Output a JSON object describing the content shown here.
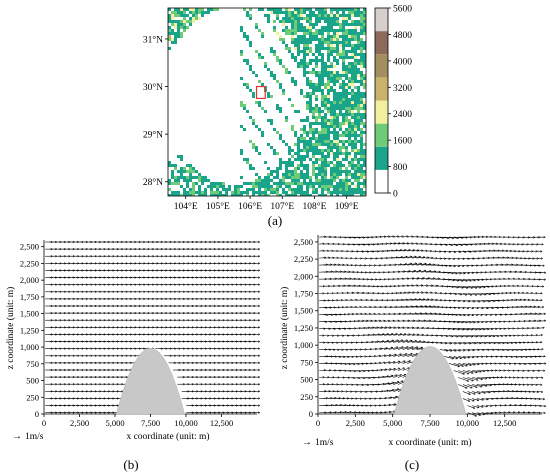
{
  "figure": {
    "panels": [
      {
        "id": "a",
        "label": "(a)",
        "chart_data": {
          "type": "heatmap",
          "title": "",
          "xlabel": "",
          "ylabel": "",
          "x_ticks": [
            "104°E",
            "105°E",
            "106°E",
            "107°E",
            "108°E",
            "109°E"
          ],
          "x_tick_values": [
            104,
            105,
            106,
            107,
            108,
            109
          ],
          "y_ticks": [
            "28°N",
            "29°N",
            "30°N",
            "31°N"
          ],
          "y_tick_values": [
            28,
            29,
            30,
            31
          ],
          "xlim": [
            103.45,
            109.6
          ],
          "ylim": [
            27.7,
            31.65
          ],
          "colorbar": {
            "ticks": [
              "0",
              "800",
              "1600",
              "2400",
              "3200",
              "4000",
              "4800",
              "5600"
            ],
            "values": [
              0,
              800,
              1600,
              2400,
              3200,
              4000,
              4800,
              5600
            ],
            "colors": [
              "#ffffff",
              "#1aa48a",
              "#6fcb78",
              "#f2f09e",
              "#c9b26a",
              "#a28e5e",
              "#8c6a5a",
              "#d7cfcc"
            ]
          },
          "highlight_box": {
            "lon": [
              106.2,
              106.47
            ],
            "lat": [
              29.75,
              30.0
            ],
            "color": "#e8322d"
          }
        }
      },
      {
        "id": "b",
        "label": "(b)",
        "chart_data": {
          "type": "vector-field",
          "title": "",
          "xlabel": "x coordinate (unit: m)",
          "ylabel": "z coordinate (unit: m)",
          "x_ticks": [
            "0",
            "2,500",
            "5,000",
            "7,500",
            "10,000",
            "12,500"
          ],
          "x_tick_values": [
            0,
            2500,
            5000,
            7500,
            10000,
            12500
          ],
          "y_ticks": [
            "0",
            "250",
            "500",
            "750",
            "1,000",
            "1,250",
            "1,500",
            "1,750",
            "2,000",
            "2,250",
            "2,500"
          ],
          "y_tick_values": [
            0,
            250,
            500,
            750,
            1000,
            1250,
            1500,
            1750,
            2000,
            2250,
            2500
          ],
          "xlim": [
            0,
            15000
          ],
          "ylim": [
            0,
            2600
          ],
          "terrain": {
            "center_x": 7500,
            "half_width": 2400,
            "peak_z": 980
          },
          "reference_vector": "1m/s",
          "flow": "uniform"
        }
      },
      {
        "id": "c",
        "label": "(c)",
        "chart_data": {
          "type": "vector-field",
          "title": "",
          "xlabel": "x coordinate (unit: m)",
          "ylabel": "z coordinate (unit: m)",
          "x_ticks": [
            "0",
            "2,500",
            "5,000",
            "7,500",
            "10,000",
            "12,500"
          ],
          "x_tick_values": [
            0,
            2500,
            5000,
            7500,
            10000,
            12500
          ],
          "y_ticks": [
            "0",
            "250",
            "500",
            "750",
            "1,000",
            "1,250",
            "1,500",
            "1,750",
            "2,000",
            "2,250",
            "2,500"
          ],
          "y_tick_values": [
            0,
            250,
            500,
            750,
            1000,
            1250,
            1500,
            1750,
            2000,
            2250,
            2500
          ],
          "xlim": [
            0,
            15000
          ],
          "ylim": [
            0,
            2600
          ],
          "terrain": {
            "center_x": 7500,
            "half_width": 2400,
            "peak_z": 980
          },
          "reference_vector": "1m/s",
          "flow": "perturbed"
        }
      }
    ]
  }
}
